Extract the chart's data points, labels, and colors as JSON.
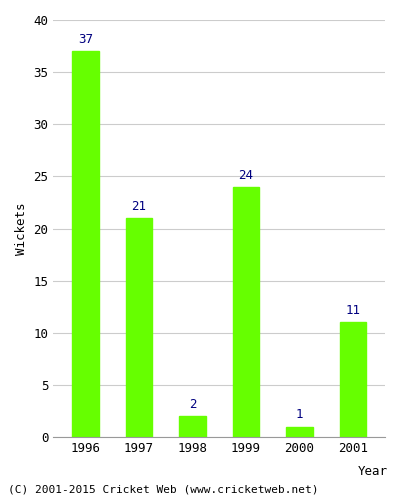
{
  "years": [
    "1996",
    "1997",
    "1998",
    "1999",
    "2000",
    "2001"
  ],
  "values": [
    37,
    21,
    2,
    24,
    1,
    11
  ],
  "bar_color": "#66ff00",
  "bar_edge_color": "#66ff00",
  "label_color": "#000080",
  "ylabel": "Wickets",
  "xlabel": "Year",
  "ylim": [
    0,
    40
  ],
  "yticks": [
    0,
    5,
    10,
    15,
    20,
    25,
    30,
    35,
    40
  ],
  "grid_color": "#cccccc",
  "background_color": "#ffffff",
  "plot_bg_color": "#ffffff",
  "footer_text": "(C) 2001-2015 Cricket Web (www.cricketweb.net)",
  "label_fontsize": 9,
  "axis_label_fontsize": 9,
  "tick_fontsize": 9,
  "footer_fontsize": 8
}
